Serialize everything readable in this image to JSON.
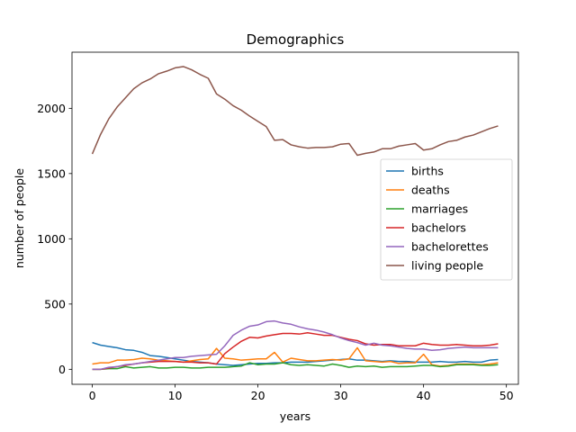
{
  "chart_data": {
    "type": "line",
    "title": "Demographics",
    "xlabel": "years",
    "ylabel": "number of people",
    "xlim": [
      -2.45,
      51.45
    ],
    "ylim": [
      -115,
      2430
    ],
    "xticks": [
      0,
      10,
      20,
      30,
      40,
      50
    ],
    "yticks": [
      0,
      500,
      1000,
      1500,
      2000
    ],
    "grid": false,
    "legend_position": "center-right",
    "x": [
      0,
      1,
      2,
      3,
      4,
      5,
      6,
      7,
      8,
      9,
      10,
      11,
      12,
      13,
      14,
      15,
      16,
      17,
      18,
      19,
      20,
      21,
      22,
      23,
      24,
      25,
      26,
      27,
      28,
      29,
      30,
      31,
      32,
      33,
      34,
      35,
      36,
      37,
      38,
      39,
      40,
      41,
      42,
      43,
      44,
      45,
      46,
      47,
      48,
      49
    ],
    "series": [
      {
        "name": "births",
        "color": "#1f77b4",
        "values": [
          205,
          185,
          175,
          165,
          150,
          145,
          130,
          105,
          100,
          90,
          80,
          70,
          60,
          55,
          50,
          40,
          35,
          30,
          35,
          40,
          45,
          45,
          50,
          50,
          55,
          55,
          55,
          60,
          65,
          70,
          75,
          80,
          70,
          70,
          65,
          60,
          65,
          60,
          60,
          55,
          55,
          55,
          60,
          55,
          55,
          60,
          55,
          55,
          70,
          75
        ]
      },
      {
        "name": "deaths",
        "color": "#ff7f0e",
        "values": [
          40,
          50,
          50,
          70,
          70,
          75,
          85,
          80,
          70,
          65,
          60,
          55,
          65,
          75,
          80,
          160,
          85,
          80,
          70,
          75,
          80,
          80,
          130,
          55,
          85,
          75,
          65,
          65,
          70,
          75,
          70,
          80,
          165,
          65,
          60,
          55,
          60,
          45,
          50,
          50,
          115,
          35,
          25,
          30,
          40,
          40,
          40,
          35,
          40,
          50
        ]
      },
      {
        "name": "marriages",
        "color": "#2ca02c",
        "values": [
          0,
          0,
          5,
          5,
          20,
          10,
          15,
          20,
          10,
          10,
          15,
          15,
          10,
          10,
          15,
          15,
          15,
          20,
          25,
          50,
          35,
          40,
          40,
          50,
          35,
          30,
          35,
          30,
          25,
          40,
          30,
          15,
          25,
          20,
          25,
          15,
          20,
          20,
          20,
          25,
          30,
          30,
          20,
          25,
          35,
          35,
          35,
          30,
          30,
          35
        ]
      },
      {
        "name": "bachelors",
        "color": "#d62728",
        "values": [
          0,
          0,
          10,
          20,
          30,
          40,
          50,
          55,
          60,
          60,
          60,
          55,
          55,
          50,
          50,
          40,
          120,
          170,
          215,
          245,
          240,
          255,
          265,
          275,
          275,
          270,
          280,
          270,
          260,
          260,
          245,
          230,
          220,
          195,
          185,
          190,
          190,
          180,
          180,
          180,
          200,
          190,
          185,
          185,
          190,
          185,
          180,
          180,
          185,
          195
        ]
      },
      {
        "name": "bachelorettes",
        "color": "#9467bd",
        "values": [
          0,
          0,
          15,
          20,
          35,
          40,
          50,
          60,
          70,
          80,
          90,
          90,
          100,
          105,
          110,
          115,
          180,
          260,
          300,
          330,
          340,
          365,
          370,
          355,
          345,
          325,
          310,
          300,
          285,
          265,
          240,
          220,
          205,
          185,
          200,
          185,
          180,
          170,
          160,
          155,
          155,
          145,
          150,
          160,
          165,
          170,
          165,
          165,
          165,
          165
        ]
      },
      {
        "name": "living people",
        "color": "#8c564b",
        "values": [
          1650,
          1800,
          1920,
          2010,
          2080,
          2150,
          2195,
          2225,
          2265,
          2285,
          2310,
          2320,
          2295,
          2260,
          2230,
          2110,
          2070,
          2020,
          1985,
          1940,
          1900,
          1860,
          1755,
          1760,
          1720,
          1705,
          1695,
          1700,
          1700,
          1705,
          1725,
          1730,
          1640,
          1655,
          1665,
          1690,
          1690,
          1710,
          1720,
          1730,
          1680,
          1690,
          1720,
          1745,
          1755,
          1780,
          1795,
          1820,
          1845,
          1865
        ]
      }
    ]
  }
}
